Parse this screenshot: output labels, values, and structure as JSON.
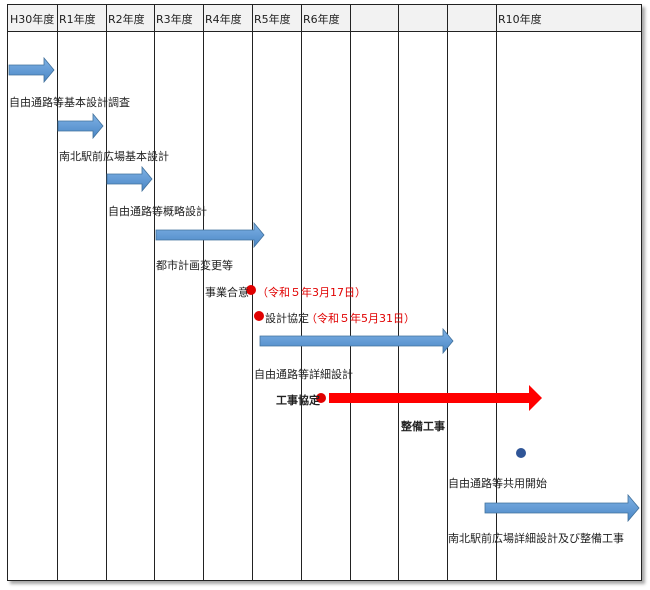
{
  "years": [
    "H30年度",
    "R1年度",
    "R2年度",
    "R3年度",
    "R4年度",
    "R5年度",
    "R6年度",
    "R10年度"
  ],
  "tasks": {
    "survey": "自由通路等基本設計調査",
    "plaza_basic": "南北駅前広場基本設計",
    "outline": "自由通路等概略設計",
    "city_plan": "都市計画変更等",
    "agreement": "事業合意",
    "agreement_date": "（令和５年3月17日）",
    "design_agreement": "設計協定",
    "design_agreement_date": "（令和５年5月31日）",
    "detail_design": "自由通路等詳細設計",
    "construction_agreement": "工事協定",
    "construction": "整備工事",
    "opening": "自由通路等共用開始",
    "plaza_detail": "南北駅前広場詳細設計及び整備工事"
  },
  "colors": {
    "blue_bar": "#5b9bd5",
    "red_bar": "#ff0000",
    "red_dot": "#e00000",
    "navy_dot": "#2f5597"
  }
}
